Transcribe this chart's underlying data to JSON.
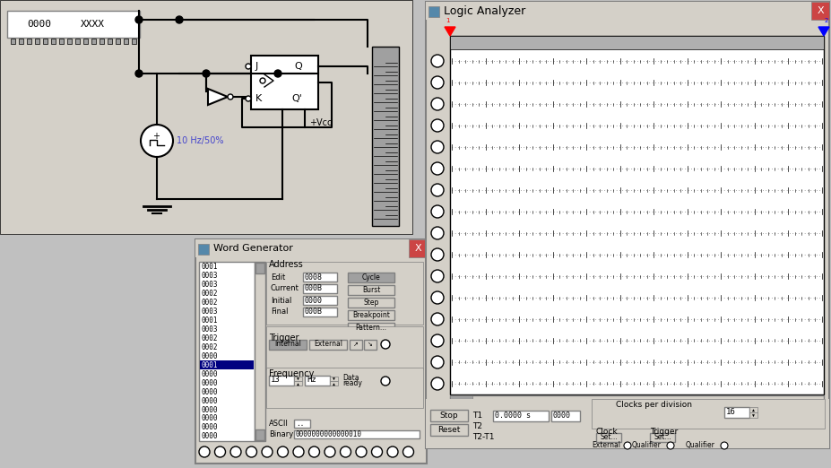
{
  "bg_color": "#c0c0c0",
  "white": "#ffffff",
  "black": "#000000",
  "gray_light": "#d4d0c8",
  "gray_med": "#a0a0a0",
  "gray_dark": "#808080",
  "logic_title": "Logic Analyzer",
  "wg_title": "Word Generator",
  "wg_data": [
    "0001",
    "0003",
    "0003",
    "0002",
    "0002",
    "0003",
    "0001",
    "0003",
    "0002",
    "0002",
    "0000",
    "0001",
    "0000",
    "0000",
    "0000",
    "0000",
    "0000",
    "0000",
    "0000",
    "0000"
  ],
  "wg_selected": 11,
  "addr_edit": "0008",
  "addr_current": "000B",
  "addr_initial": "0000",
  "addr_final": "000B",
  "freq_val": "13",
  "freq_unit": "Hz",
  "binary_val": "0000000000000010",
  "ascii_val": "..",
  "clocks_per_div": "16",
  "t1_val": "0.0000 s",
  "t2_val": "0000"
}
